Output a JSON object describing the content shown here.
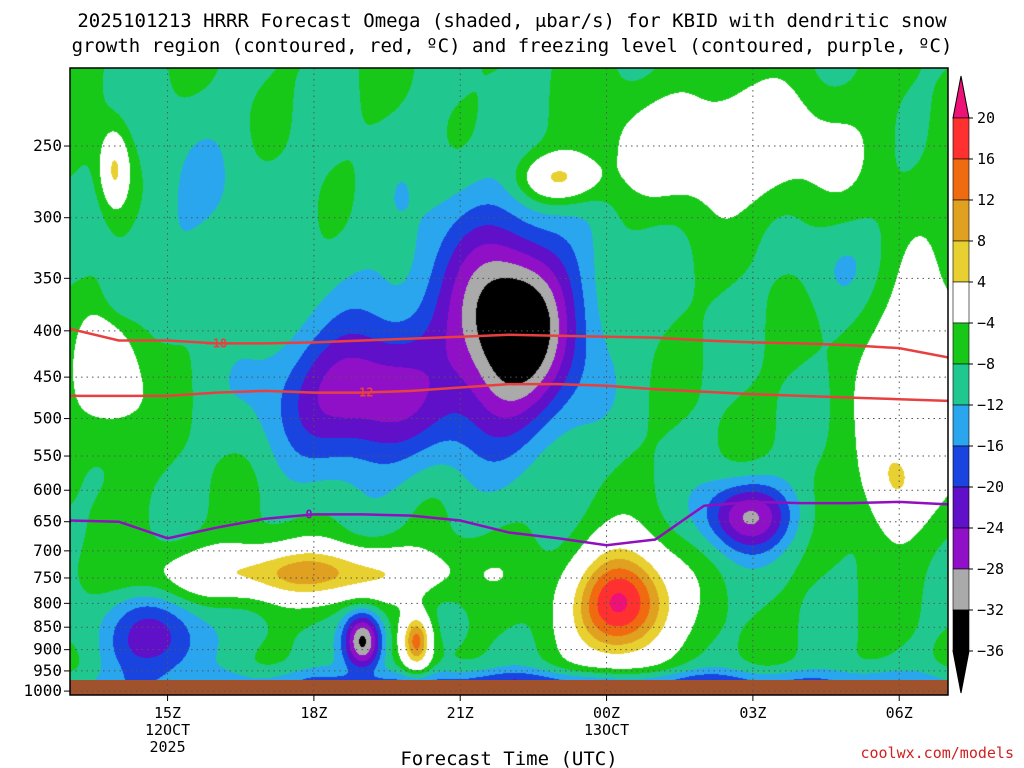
{
  "chart_data": {
    "type": "heatmap",
    "title_lines": [
      "2025101213 HRRR Forecast Omega (shaded, μbar/s) for KBID with dendritic snow",
      "growth region (contoured, red, ºC) and freezing level (contoured, purple, ºC)"
    ],
    "xlabel": "Forecast Time (UTC)",
    "ylabel": "",
    "credit": "coolwx.com/models",
    "y_scale": "log",
    "y_reversed": true,
    "ylim": [
      1010,
      205
    ],
    "y_ticks": [
      250,
      300,
      350,
      400,
      450,
      500,
      550,
      600,
      650,
      700,
      750,
      800,
      850,
      900,
      950,
      1000
    ],
    "x_range_hours": [
      13,
      31
    ],
    "x_ticks": [
      {
        "hour": 15,
        "label": "15Z",
        "sub1": "12OCT",
        "sub2": "2025"
      },
      {
        "hour": 18,
        "label": "18Z",
        "sub1": "",
        "sub2": ""
      },
      {
        "hour": 21,
        "label": "21Z",
        "sub1": "",
        "sub2": ""
      },
      {
        "hour": 24,
        "label": "00Z",
        "sub1": "13OCT",
        "sub2": ""
      },
      {
        "hour": 27,
        "label": "03Z",
        "sub1": "",
        "sub2": ""
      },
      {
        "hour": 30,
        "label": "06Z",
        "sub1": "",
        "sub2": ""
      }
    ],
    "colorbar": {
      "labels": [
        "20",
        "16",
        "12",
        "8",
        "4",
        "−4",
        "−8",
        "−12",
        "−16",
        "−20",
        "−24",
        "−28",
        "−32",
        "−36"
      ],
      "colors": [
        "#ee1177",
        "#ff3030",
        "#f06a10",
        "#e0a020",
        "#e8d030",
        "#ffffff",
        "#18c818",
        "#20c890",
        "#2aa6ee",
        "#1a44e0",
        "#6010c8",
        "#9010c8",
        "#aaaaaa",
        "#000000"
      ]
    },
    "omega_field": {
      "background": -8,
      "features": [
        {
          "name": "upper-left-teal",
          "hour": 15.6,
          "p": 290,
          "rx": 1.5,
          "rp": 0.24,
          "peak": -12
        },
        {
          "name": "upper-center-teal",
          "hour": 21.3,
          "p": 360,
          "rx": 2.6,
          "rp": 0.35,
          "peak": -13
        },
        {
          "name": "core-min",
          "hour": 22.0,
          "p": 400,
          "rx": 1.3,
          "rp": 0.24,
          "peak": -40
        },
        {
          "name": "midlevel-min",
          "hour": 19.0,
          "p": 470,
          "rx": 1.8,
          "rp": 0.18,
          "peak": -28
        },
        {
          "name": "left-blue",
          "hour": 14.0,
          "p": 370,
          "rx": 0.4,
          "rp": 0.08,
          "peak": -16
        },
        {
          "name": "low-left-blue",
          "hour": 14.8,
          "p": 870,
          "rx": 1.1,
          "rp": 0.12,
          "peak": -22
        },
        {
          "name": "low-small-min",
          "hour": 19.0,
          "p": 880,
          "rx": 0.4,
          "rp": 0.08,
          "peak": -34
        },
        {
          "name": "low-center-min",
          "hour": 26.9,
          "p": 640,
          "rx": 0.9,
          "rp": 0.09,
          "peak": -28
        },
        {
          "name": "right-upper-teal",
          "hour": 28.8,
          "p": 340,
          "rx": 0.9,
          "rp": 0.12,
          "peak": -12
        },
        {
          "name": "bottom-blue",
          "hour": 23.5,
          "p": 985,
          "rx": 9.0,
          "rp": 0.04,
          "peak": -20
        },
        {
          "name": "warm-max",
          "hour": 24.3,
          "p": 800,
          "rx": 1.0,
          "rp": 0.14,
          "peak": 22
        },
        {
          "name": "warm-band",
          "hour": 17.8,
          "p": 740,
          "rx": 2.8,
          "rp": 0.07,
          "peak": 9
        },
        {
          "name": "small-warm",
          "hour": 20.1,
          "p": 880,
          "rx": 0.3,
          "rp": 0.07,
          "peak": 14
        },
        {
          "name": "right-warm",
          "hour": 29.9,
          "p": 570,
          "rx": 0.6,
          "rp": 0.14,
          "peak": 9
        },
        {
          "name": "upper-warm",
          "hour": 23.1,
          "p": 270,
          "rx": 0.8,
          "rp": 0.06,
          "peak": 5
        },
        {
          "name": "left-warm",
          "hour": 13.9,
          "p": 265,
          "rx": 0.3,
          "rp": 0.1,
          "peak": 5
        },
        {
          "name": "upper-right-white",
          "hour": 26.5,
          "p": 250,
          "rx": 2.5,
          "rp": 0.15,
          "peak": 2
        },
        {
          "name": "right-white",
          "hour": 30.5,
          "p": 450,
          "rx": 1.2,
          "rp": 0.3,
          "peak": 1
        },
        {
          "name": "left-white",
          "hour": 13.8,
          "p": 450,
          "rx": 0.8,
          "rp": 0.18,
          "peak": 0
        }
      ]
    },
    "contours": [
      {
        "name": "-18",
        "label": "−18",
        "color": "#e84040",
        "label_hour": 16.0,
        "label_p": 413,
        "x": [
          13,
          14,
          15,
          16,
          17,
          18,
          19,
          20,
          21,
          22,
          23,
          24,
          25,
          26,
          27,
          28,
          29,
          30,
          31
        ],
        "p": [
          398,
          410,
          410,
          413,
          413,
          412,
          410,
          408,
          406,
          404,
          405,
          406,
          407,
          410,
          412,
          413,
          415,
          418,
          428
        ]
      },
      {
        "name": "-12",
        "label": "−12",
        "color": "#e84040",
        "label_hour": 19.0,
        "label_p": 468,
        "x": [
          13,
          14,
          15,
          16,
          17,
          18,
          19,
          20,
          21,
          22,
          23,
          24,
          25,
          26,
          27,
          28,
          29,
          30,
          31
        ],
        "p": [
          472,
          472,
          472,
          468,
          466,
          468,
          468,
          466,
          462,
          458,
          458,
          460,
          464,
          467,
          470,
          472,
          474,
          476,
          478
        ]
      },
      {
        "name": "0",
        "label": "0",
        "color": "#9010c0",
        "label_hour": 17.9,
        "label_p": 638,
        "x": [
          13,
          14,
          15,
          16,
          17,
          18,
          19,
          20,
          21,
          22,
          23,
          24,
          25,
          26,
          27,
          28,
          29,
          30,
          31
        ],
        "p": [
          648,
          650,
          678,
          660,
          645,
          638,
          638,
          640,
          648,
          668,
          678,
          690,
          680,
          624,
          618,
          620,
          620,
          618,
          622
        ]
      }
    ]
  }
}
